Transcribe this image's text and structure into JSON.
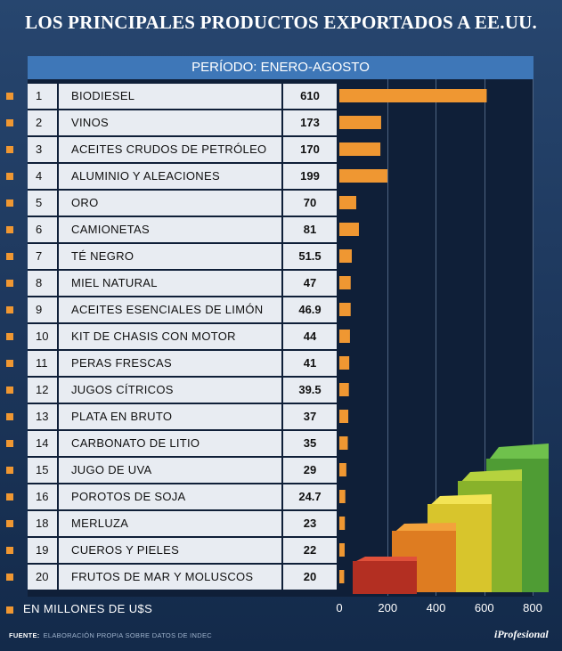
{
  "title": "LOS PRINCIPALES PRODUCTOS EXPORTADOS A EE.UU.",
  "period": "PERÍODO: ENERO-AGOSTO",
  "unit_label": "EN MILLONES DE U$S",
  "source_label": "FUENTE:",
  "source_text": "ELABORACIÓN PROPIA SOBRE DATOS DE INDEC",
  "logo": "iProfesional",
  "chart_data": {
    "type": "bar",
    "orientation": "horizontal",
    "title": "LOS PRINCIPALES PRODUCTOS EXPORTADOS A EE.UU.",
    "subtitle": "PERÍODO: ENERO-AGOSTO",
    "xlabel": "EN MILLONES DE U$S",
    "xlim": [
      0,
      800
    ],
    "ticks": [
      "0",
      "200",
      "400",
      "600",
      "800"
    ],
    "bar_color": "#ef9732",
    "rows": [
      {
        "rank": "1",
        "name": "BIODIESEL",
        "value": 610,
        "label": "610"
      },
      {
        "rank": "2",
        "name": "VINOS",
        "value": 173,
        "label": "173"
      },
      {
        "rank": "3",
        "name": "ACEITES CRUDOS DE PETRÓLEO",
        "value": 170,
        "label": "170"
      },
      {
        "rank": "4",
        "name": "ALUMINIO Y ALEACIONES",
        "value": 199,
        "label": "199"
      },
      {
        "rank": "5",
        "name": "ORO",
        "value": 70,
        "label": "70"
      },
      {
        "rank": "6",
        "name": "CAMIONETAS",
        "value": 81,
        "label": "81"
      },
      {
        "rank": "7",
        "name": "TÉ NEGRO",
        "value": 51.5,
        "label": "51.5"
      },
      {
        "rank": "8",
        "name": "MIEL NATURAL",
        "value": 47,
        "label": "47"
      },
      {
        "rank": "9",
        "name": "ACEITES ESENCIALES DE LIMÓN",
        "value": 46.9,
        "label": "46.9"
      },
      {
        "rank": "10",
        "name": "KIT DE CHASIS CON MOTOR",
        "value": 44,
        "label": "44"
      },
      {
        "rank": "11",
        "name": "PERAS FRESCAS",
        "value": 41,
        "label": "41"
      },
      {
        "rank": "12",
        "name": "JUGOS CÍTRICOS",
        "value": 39.5,
        "label": "39.5"
      },
      {
        "rank": "13",
        "name": "PLATA EN BRUTO",
        "value": 37,
        "label": "37"
      },
      {
        "rank": "14",
        "name": "CARBONATO DE LITIO",
        "value": 35,
        "label": "35"
      },
      {
        "rank": "15",
        "name": "JUGO DE UVA",
        "value": 29,
        "label": "29"
      },
      {
        "rank": "16",
        "name": "POROTOS DE SOJA",
        "value": 24.7,
        "label": "24.7"
      },
      {
        "rank": "18",
        "name": "MERLUZA",
        "value": 23,
        "label": "23"
      },
      {
        "rank": "19",
        "name": "CUEROS Y PIELES",
        "value": 22,
        "label": "22"
      },
      {
        "rank": "20",
        "name": "FRUTOS DE MAR Y MOLUSCOS",
        "value": 20,
        "label": "20"
      }
    ]
  }
}
